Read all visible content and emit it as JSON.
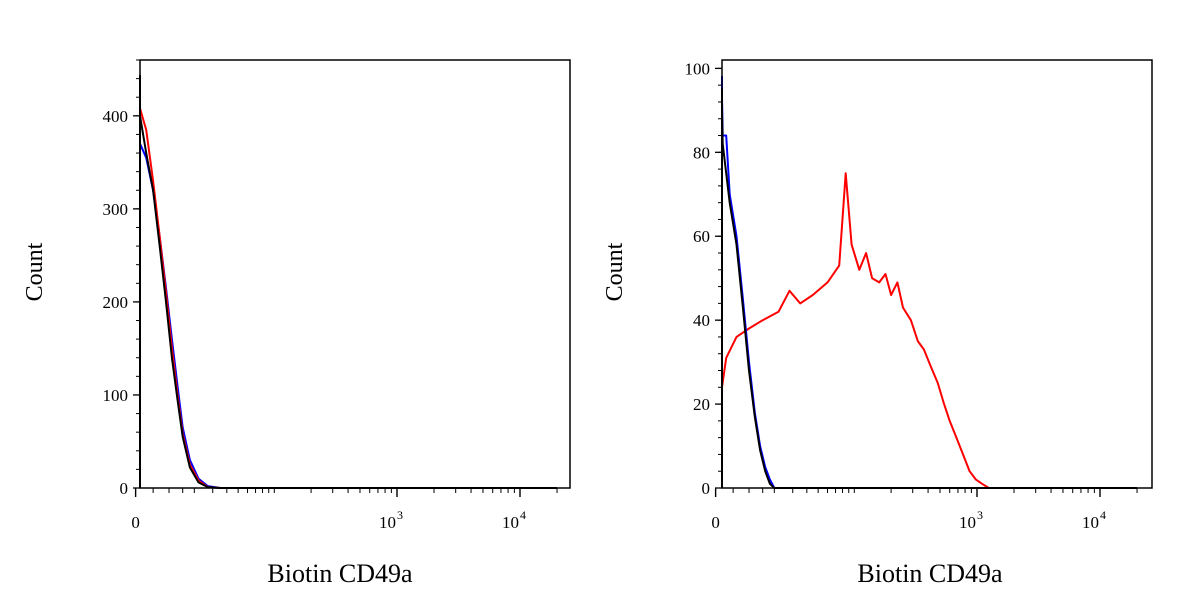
{
  "chart_data": [
    {
      "type": "line",
      "xlabel": "Biotin CD49a",
      "ylabel": "Count",
      "x_scale": "biexponential",
      "xlim": [
        -20,
        20000
      ],
      "ylim": [
        0,
        460
      ],
      "yticks": [
        0,
        100,
        200,
        300,
        400
      ],
      "xtick_labels": [
        {
          "value": 0,
          "base": "0",
          "exp": ""
        },
        {
          "value": 1000,
          "base": "10",
          "exp": "3"
        },
        {
          "value": 10000,
          "base": "10",
          "exp": "4"
        }
      ],
      "series": [
        {
          "color": "#0000ff",
          "points": [
            [
              -14,
              0
            ],
            [
              -11,
              3
            ],
            [
              -8,
              8
            ],
            [
              -5,
              35
            ],
            [
              -3,
              120
            ],
            [
              -1.5,
              260
            ],
            [
              0,
              382
            ],
            [
              1,
              370
            ],
            [
              3,
              355
            ],
            [
              5,
              320
            ],
            [
              7,
              270
            ],
            [
              9,
              215
            ],
            [
              11,
              160
            ],
            [
              13,
              110
            ],
            [
              15,
              65
            ],
            [
              18,
              30
            ],
            [
              22,
              10
            ],
            [
              27,
              2
            ],
            [
              35,
              0
            ],
            [
              20000,
              0
            ]
          ]
        },
        {
          "color": "#ff0000",
          "points": [
            [
              -14,
              0
            ],
            [
              -11,
              3
            ],
            [
              -8,
              10
            ],
            [
              -5,
              40
            ],
            [
              -3,
              135
            ],
            [
              -1.5,
              285
            ],
            [
              0,
              405
            ],
            [
              1,
              408
            ],
            [
              3,
              385
            ],
            [
              5,
              330
            ],
            [
              7,
              270
            ],
            [
              9,
              210
            ],
            [
              11,
              150
            ],
            [
              13,
              100
            ],
            [
              15,
              58
            ],
            [
              18,
              25
            ],
            [
              22,
              8
            ],
            [
              27,
              1
            ],
            [
              35,
              0
            ],
            [
              20000,
              0
            ]
          ]
        },
        {
          "color": "#000000",
          "points": [
            [
              -14,
              0
            ],
            [
              -11,
              3
            ],
            [
              -8,
              9
            ],
            [
              -5,
              38
            ],
            [
              -3,
              130
            ],
            [
              -1.5,
              290
            ],
            [
              0,
              443
            ],
            [
              1,
              400
            ],
            [
              3,
              360
            ],
            [
              5,
              320
            ],
            [
              7,
              260
            ],
            [
              9,
              200
            ],
            [
              11,
              140
            ],
            [
              13,
              95
            ],
            [
              15,
              55
            ],
            [
              18,
              22
            ],
            [
              22,
              6
            ],
            [
              27,
              1
            ],
            [
              35,
              0
            ],
            [
              20000,
              0
            ]
          ]
        }
      ]
    },
    {
      "type": "line",
      "xlabel": "Biotin CD49a",
      "ylabel": "Count",
      "x_scale": "biexponential",
      "xlim": [
        -20,
        20000
      ],
      "ylim": [
        0,
        102
      ],
      "yticks": [
        0,
        20,
        40,
        60,
        80,
        100
      ],
      "xtick_labels": [
        {
          "value": 0,
          "base": "0",
          "exp": ""
        },
        {
          "value": 1000,
          "base": "10",
          "exp": "3"
        },
        {
          "value": 10000,
          "base": "10",
          "exp": "4"
        }
      ],
      "series": [
        {
          "color": "#ff0000",
          "points": [
            [
              -20,
              15
            ],
            [
              -17,
              5
            ],
            [
              -14,
              6
            ],
            [
              -11,
              9
            ],
            [
              -8,
              13
            ],
            [
              -5,
              19
            ],
            [
              -2,
              21
            ],
            [
              0,
              24
            ],
            [
              3,
              31
            ],
            [
              6,
              36
            ],
            [
              10,
              38
            ],
            [
              15,
              40
            ],
            [
              22,
              42
            ],
            [
              28,
              47
            ],
            [
              35,
              44
            ],
            [
              45,
              46
            ],
            [
              60,
              49
            ],
            [
              75,
              53
            ],
            [
              85,
              75
            ],
            [
              95,
              58
            ],
            [
              110,
              52
            ],
            [
              125,
              56
            ],
            [
              140,
              50
            ],
            [
              160,
              49
            ],
            [
              180,
              51
            ],
            [
              200,
              46
            ],
            [
              225,
              49
            ],
            [
              250,
              43
            ],
            [
              290,
              40
            ],
            [
              330,
              35
            ],
            [
              370,
              33
            ],
            [
              420,
              29
            ],
            [
              480,
              25
            ],
            [
              540,
              20
            ],
            [
              600,
              16
            ],
            [
              680,
              12
            ],
            [
              770,
              8
            ],
            [
              870,
              4
            ],
            [
              980,
              2
            ],
            [
              1100,
              1
            ],
            [
              1250,
              0
            ],
            [
              20000,
              0
            ]
          ]
        },
        {
          "color": "#0000ff",
          "points": [
            [
              -14,
              0
            ],
            [
              -11,
              2
            ],
            [
              -8,
              8
            ],
            [
              -5,
              30
            ],
            [
              -3,
              60
            ],
            [
              -1.5,
              85
            ],
            [
              0,
              98
            ],
            [
              1,
              93
            ],
            [
              2,
              84
            ],
            [
              3,
              84
            ],
            [
              4,
              70
            ],
            [
              6,
              60
            ],
            [
              8,
              45
            ],
            [
              10,
              30
            ],
            [
              12,
              18
            ],
            [
              14,
              10
            ],
            [
              16,
              5
            ],
            [
              18,
              2
            ],
            [
              20,
              0
            ],
            [
              20000,
              0
            ]
          ]
        },
        {
          "color": "#000000",
          "points": [
            [
              -14,
              0
            ],
            [
              -11,
              2
            ],
            [
              -8,
              8
            ],
            [
              -5,
              30
            ],
            [
              -3,
              60
            ],
            [
              -1.5,
              83
            ],
            [
              0,
              95
            ],
            [
              1,
              90
            ],
            [
              2,
              82
            ],
            [
              3,
              75
            ],
            [
              4,
              68
            ],
            [
              6,
              58
            ],
            [
              8,
              43
            ],
            [
              10,
              28
            ],
            [
              12,
              17
            ],
            [
              14,
              9
            ],
            [
              16,
              4
            ],
            [
              18,
              1
            ],
            [
              20,
              0
            ],
            [
              20000,
              0
            ]
          ]
        }
      ]
    }
  ]
}
